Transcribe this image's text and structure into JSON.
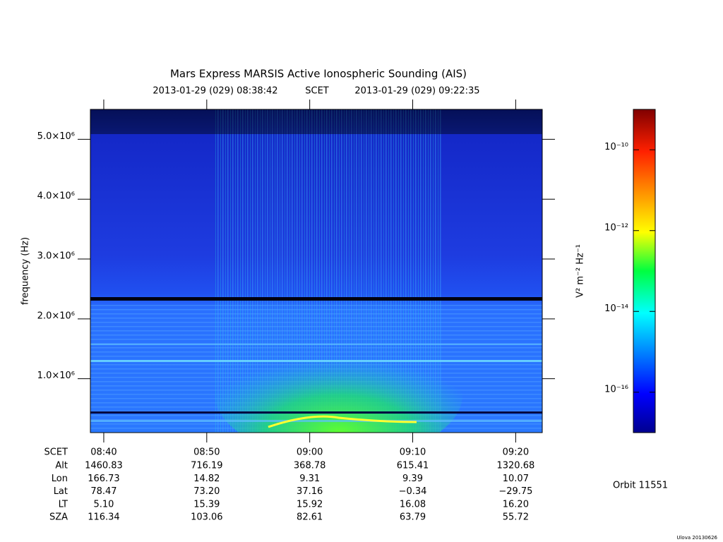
{
  "chart_data": {
    "type": "spectrogram",
    "title": "Mars Express MARSIS Active Ionospheric Sounding (AIS)",
    "start_time": "2013-01-29 (029) 08:38:42",
    "time_label": "SCET",
    "end_time": "2013-01-29 (029) 09:22:35",
    "y_label": "frequency (Hz)",
    "xlim": [
      518.7,
      562.58
    ],
    "xticks": [
      {
        "value": 520,
        "label": "08:40"
      },
      {
        "value": 530,
        "label": "08:50"
      },
      {
        "value": 540,
        "label": "09:00"
      },
      {
        "value": 550,
        "label": "09:10"
      },
      {
        "value": 560,
        "label": "09:20"
      }
    ],
    "ylim": [
      100000,
      5500000
    ],
    "yticks": [
      {
        "value": 1000000,
        "label": "1.0×10⁶"
      },
      {
        "value": 2000000,
        "label": "2.0×10⁶"
      },
      {
        "value": 3000000,
        "label": "3.0×10⁶"
      },
      {
        "value": 4000000,
        "label": "4.0×10⁶"
      },
      {
        "value": 5000000,
        "label": "5.0×10⁶"
      }
    ],
    "colorbar": {
      "label": "V² m⁻² Hz⁻¹",
      "log": true,
      "lim": [
        1e-17,
        1e-09
      ],
      "ticks": [
        {
          "value": 1e-16,
          "label": "10⁻¹⁶"
        },
        {
          "value": 1e-14,
          "label": "10⁻¹⁴"
        },
        {
          "value": 1e-12,
          "label": "10⁻¹²"
        },
        {
          "value": 1e-10,
          "label": "10⁻¹⁰"
        }
      ]
    },
    "ephemeris": [
      {
        "label": "Alt",
        "values": [
          "1460.83",
          "716.19",
          "368.78",
          "615.41",
          "1320.68"
        ]
      },
      {
        "label": "Lon",
        "values": [
          "166.73",
          "14.82",
          "9.31",
          "9.39",
          "10.07"
        ]
      },
      {
        "label": "Lat",
        "values": [
          "78.47",
          "73.20",
          "37.16",
          "−0.34",
          "−29.75"
        ]
      },
      {
        "label": "LT",
        "values": [
          "5.10",
          "15.39",
          "15.92",
          "16.08",
          "16.20"
        ]
      },
      {
        "label": "SZA",
        "values": [
          "116.34",
          "103.06",
          "82.61",
          "63.79",
          "55.72"
        ]
      }
    ],
    "orbit": "Orbit 11551",
    "credit": "Ulova 20130626"
  }
}
